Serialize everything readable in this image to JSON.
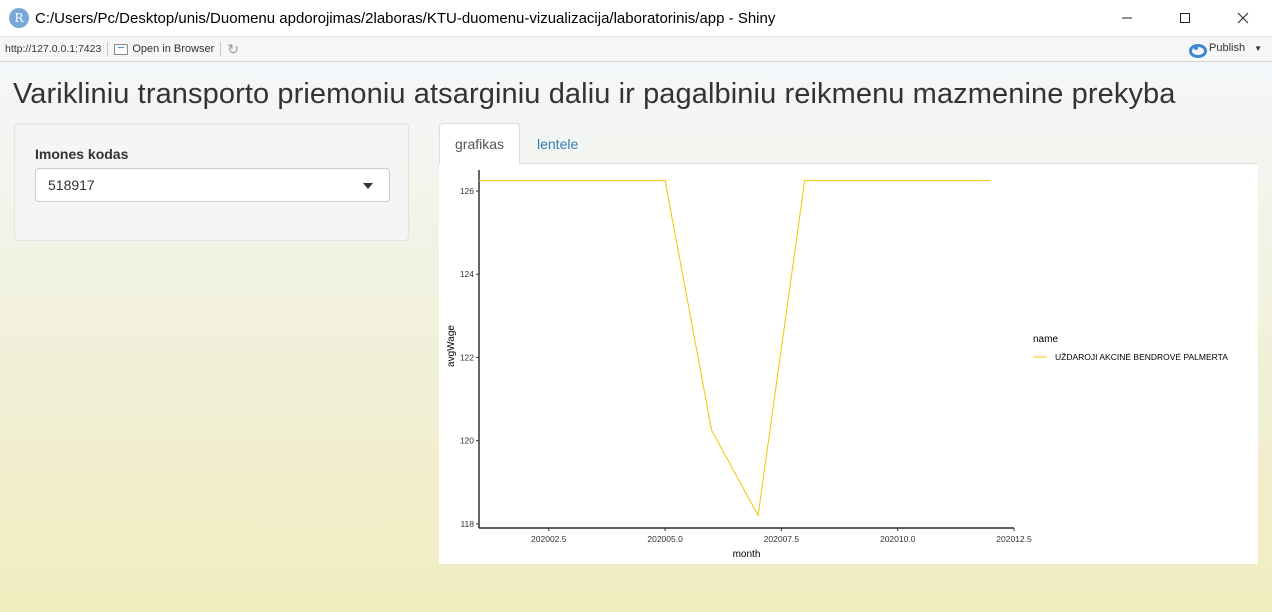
{
  "window": {
    "title": "C:/Users/Pc/Desktop/unis/Duomenu apdorojimas/2laboras/KTU-duomenu-vizualizacija/laboratorinis/app - Shiny",
    "logo_letter": "R"
  },
  "toolbar": {
    "url": "http://127.0.0.1:7423",
    "open_browser_label": "Open in Browser",
    "publish_label": "Publish"
  },
  "app": {
    "title": "Varikliniu transporto priemoniu atsarginiu daliu ir pagalbiniu reikmenu mazmenine prekyba",
    "sidebar": {
      "input_label": "Imones kodas",
      "selected_value": "518917"
    },
    "tabs": [
      {
        "label": "grafikas",
        "active": true
      },
      {
        "label": "lentele",
        "active": false
      }
    ]
  },
  "colors": {
    "series_line": "#f5c400",
    "tab_link": "#337ab7"
  },
  "chart_data": {
    "type": "line",
    "title": "",
    "xlabel": "month",
    "ylabel": "avgWage",
    "xlim": [
      202001,
      202012.5
    ],
    "ylim": [
      117.9,
      126.65
    ],
    "xticks": [
      202002.5,
      202005.0,
      202007.5,
      202010.0,
      202012.5
    ],
    "xtick_labels": [
      "202002.5",
      "202005.0",
      "202007.5",
      "202010.0",
      "202012.5"
    ],
    "yticks": [
      118,
      120,
      122,
      124,
      126
    ],
    "ytick_labels": [
      "118",
      "120",
      "122",
      "124",
      "126"
    ],
    "legend": {
      "title": "name",
      "placement": "right"
    },
    "series": [
      {
        "name": "UŽDAROJI AKCINĖ BENDROVĖ PALMERTA",
        "x": [
          202001,
          202002,
          202003,
          202004,
          202005,
          202006,
          202007,
          202008,
          202009,
          202010,
          202011,
          202012
        ],
        "values": [
          126.25,
          126.25,
          126.25,
          126.25,
          126.25,
          120.25,
          118.2,
          126.25,
          126.25,
          126.25,
          126.25,
          126.25
        ]
      }
    ]
  }
}
